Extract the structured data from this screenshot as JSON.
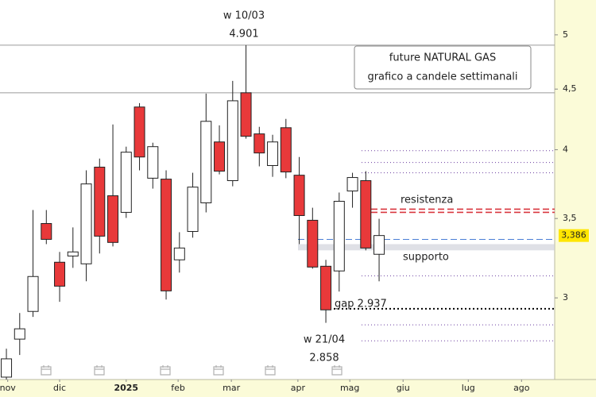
{
  "chart_data": {
    "type": "candlestick",
    "title": "future NATURAL GAS",
    "subtitle": "grafico a candele settimanali",
    "log_scale": true,
    "up_color": "#ffffff",
    "down_color": "#e8393a",
    "x": [
      0,
      1,
      2,
      3,
      4,
      5,
      6,
      7,
      8,
      9,
      10,
      11,
      12,
      13,
      14,
      15,
      16,
      17,
      18,
      19,
      20,
      21,
      22,
      23,
      24,
      25,
      26,
      27,
      28
    ],
    "open": [
      2.572,
      2.769,
      2.922,
      3.466,
      3.215,
      3.254,
      3.205,
      3.867,
      3.658,
      3.542,
      4.346,
      3.785,
      3.778,
      3.23,
      3.413,
      3.608,
      4.061,
      3.767,
      4.468,
      4.125,
      3.879,
      4.175,
      3.807,
      3.488,
      3.19,
      3.161,
      3.692,
      3.767,
      3.265
    ],
    "high": [
      2.718,
      2.913,
      3.558,
      3.558,
      3.28,
      3.44,
      3.843,
      3.932,
      4.201,
      4.024,
      4.379,
      4.055,
      3.843,
      3.408,
      3.825,
      4.461,
      4.194,
      4.572,
      4.901,
      4.182,
      4.118,
      4.247,
      3.944,
      3.574,
      3.23,
      3.681,
      3.825,
      3.837,
      3.498
    ],
    "low": [
      2.56,
      2.685,
      2.891,
      3.33,
      2.977,
      3.18,
      3.098,
      3.27,
      3.315,
      3.504,
      3.843,
      3.709,
      2.99,
      3.151,
      3.372,
      3.542,
      3.813,
      3.726,
      4.087,
      3.873,
      3.795,
      3.785,
      3.33,
      3.175,
      2.858,
      3.037,
      3.574,
      3.29,
      3.098
    ],
    "close": [
      2.665,
      2.825,
      3.127,
      3.361,
      3.069,
      3.28,
      3.743,
      3.382,
      3.341,
      3.981,
      3.944,
      4.024,
      3.041,
      3.305,
      3.72,
      4.227,
      3.837,
      4.399,
      4.106,
      3.975,
      4.061,
      3.831,
      3.52,
      3.185,
      2.931,
      3.619,
      3.79,
      3.305,
      3.386
    ],
    "xlim": [
      -0.48,
      41.19
    ],
    "xticks": [
      {
        "value": 0.1,
        "label": "nov"
      },
      {
        "value": 4,
        "label": "dic"
      },
      {
        "value": 9,
        "label": "2025"
      },
      {
        "value": 12.9,
        "label": "feb"
      },
      {
        "value": 16.9,
        "label": "mar"
      },
      {
        "value": 21.9,
        "label": "apr"
      },
      {
        "value": 25.8,
        "label": "mag"
      },
      {
        "value": 29.8,
        "label": "giu"
      },
      {
        "value": 34.7,
        "label": "lug"
      },
      {
        "value": 38.7,
        "label": "ago"
      }
    ],
    "ylim": [
      2.56,
      5.35
    ],
    "yticks": [
      5,
      {
        "value": 4.5,
        "label": "4,5"
      },
      4,
      {
        "value": 3.5,
        "label": "3,5"
      },
      3
    ],
    "last_price": {
      "value": 3.386,
      "label": "3,386"
    },
    "reference_lines": [
      {
        "value": 4.901,
        "color": "#9a9a9a",
        "style": "solid"
      },
      {
        "value": 4.468,
        "color": "#9a9a9a",
        "style": "solid"
      },
      {
        "value": 3.993,
        "color": "#6b3fa0",
        "style": "dotted"
      },
      {
        "value": 3.902,
        "color": "#6b3fa0",
        "style": "dotted"
      },
      {
        "value": 3.825,
        "color": "#6b3fa0",
        "style": "dotted"
      },
      {
        "value": 3.131,
        "color": "#6b3fa0",
        "style": "dotted"
      },
      {
        "value": 2.847,
        "color": "#6b3fa0",
        "style": "dotted"
      },
      {
        "value": 2.76,
        "color": "#6b3fa0",
        "style": "dotted"
      },
      {
        "value": 3.564,
        "color": "#d9363e",
        "style": "dashed"
      },
      {
        "value": 3.542,
        "color": "#d9363e",
        "style": "dashed"
      },
      {
        "value": 3.361,
        "color": "#4a7fd6",
        "style": "dashed"
      },
      {
        "value": 2.937,
        "color": "#000000",
        "style": "dotted"
      }
    ],
    "bands": [
      {
        "from": 3.29,
        "to": 3.33,
        "color": "#c9ccd6"
      }
    ],
    "annotations": [
      "w 10/03",
      "4.901",
      "w 21/04",
      "2.858",
      "resistenza",
      "supporto",
      "gap 2.937"
    ]
  }
}
